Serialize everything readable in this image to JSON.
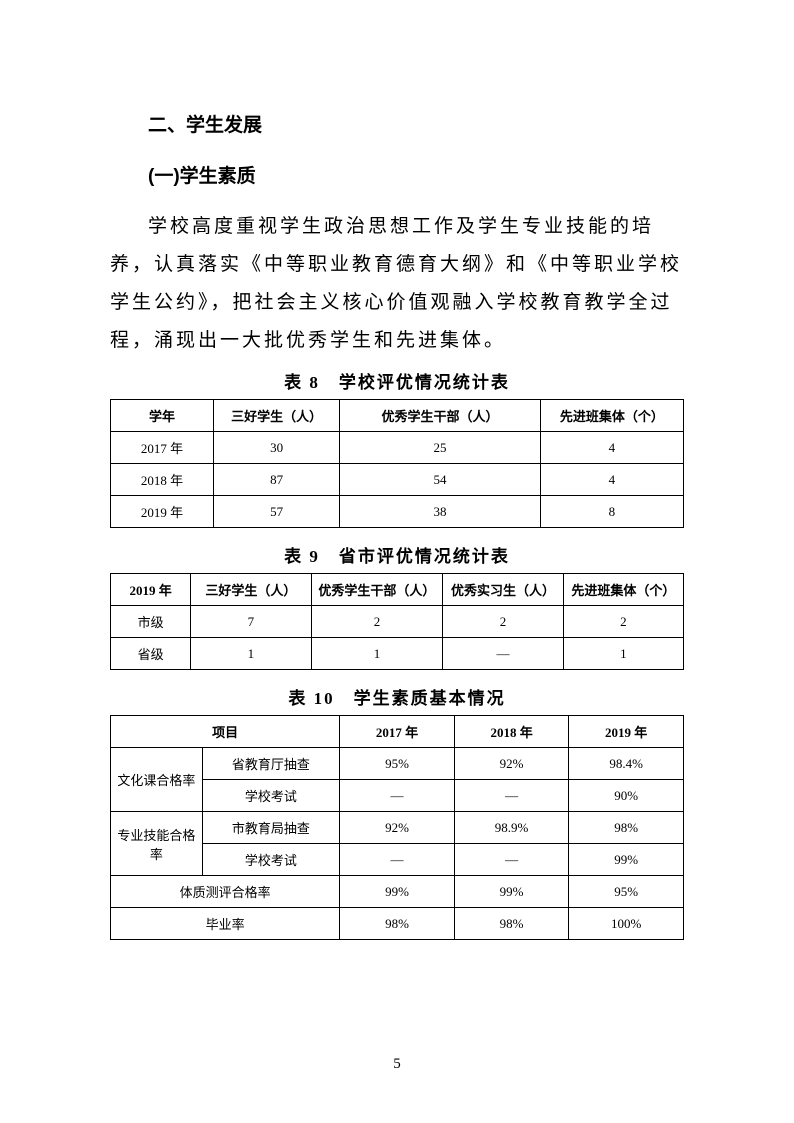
{
  "headings": {
    "h2": "二、学生发展",
    "h3": "(一)学生素质"
  },
  "paragraph": "学校高度重视学生政治思想工作及学生专业技能的培养，认真落实《中等职业教育德育大纲》和《中等职业学校学生公约》，把社会主义核心价值观融入学校教育教学全过程，涌现出一大批优秀学生和先进集体。",
  "table8": {
    "caption": "表 8　学校评优情况统计表",
    "columns": [
      "学年",
      "三好学生（人）",
      "优秀学生干部（人）",
      "先进班集体（个）"
    ],
    "rows": [
      [
        "2017 年",
        "30",
        "25",
        "4"
      ],
      [
        "2018 年",
        "87",
        "54",
        "4"
      ],
      [
        "2019 年",
        "57",
        "38",
        "8"
      ]
    ],
    "col_widths": [
      "18%",
      "22%",
      "35%",
      "25%"
    ]
  },
  "table9": {
    "caption": "表 9　省市评优情况统计表",
    "columns": [
      "2019 年",
      "三好学生（人）",
      "优秀学生干部（人）",
      "优秀实习生（人）",
      "先进班集体（个）"
    ],
    "rows": [
      [
        "市级",
        "7",
        "2",
        "2",
        "2"
      ],
      [
        "省级",
        "1",
        "1",
        "—",
        "1"
      ]
    ],
    "col_widths": [
      "14%",
      "21%",
      "23%",
      "21%",
      "21%"
    ]
  },
  "table10": {
    "caption": "表 10　学生素质基本情况",
    "header": {
      "project": "项目",
      "y2017": "2017 年",
      "y2018": "2018 年",
      "y2019": "2019 年"
    },
    "rows": {
      "r1_label": "文化课合格率",
      "r1a": [
        "省教育厅抽查",
        "95%",
        "92%",
        "98.4%"
      ],
      "r1b": [
        "学校考试",
        "—",
        "—",
        "90%"
      ],
      "r2_label": "专业技能合格率",
      "r2a": [
        "市教育局抽查",
        "92%",
        "98.9%",
        "98%"
      ],
      "r2b": [
        "学校考试",
        "—",
        "—",
        "99%"
      ],
      "r3": [
        "体质测评合格率",
        "99%",
        "99%",
        "95%"
      ],
      "r4": [
        "毕业率",
        "98%",
        "98%",
        "100%"
      ]
    },
    "col_widths": [
      "16%",
      "24%",
      "20%",
      "20%",
      "20%"
    ]
  },
  "page_number": "5"
}
